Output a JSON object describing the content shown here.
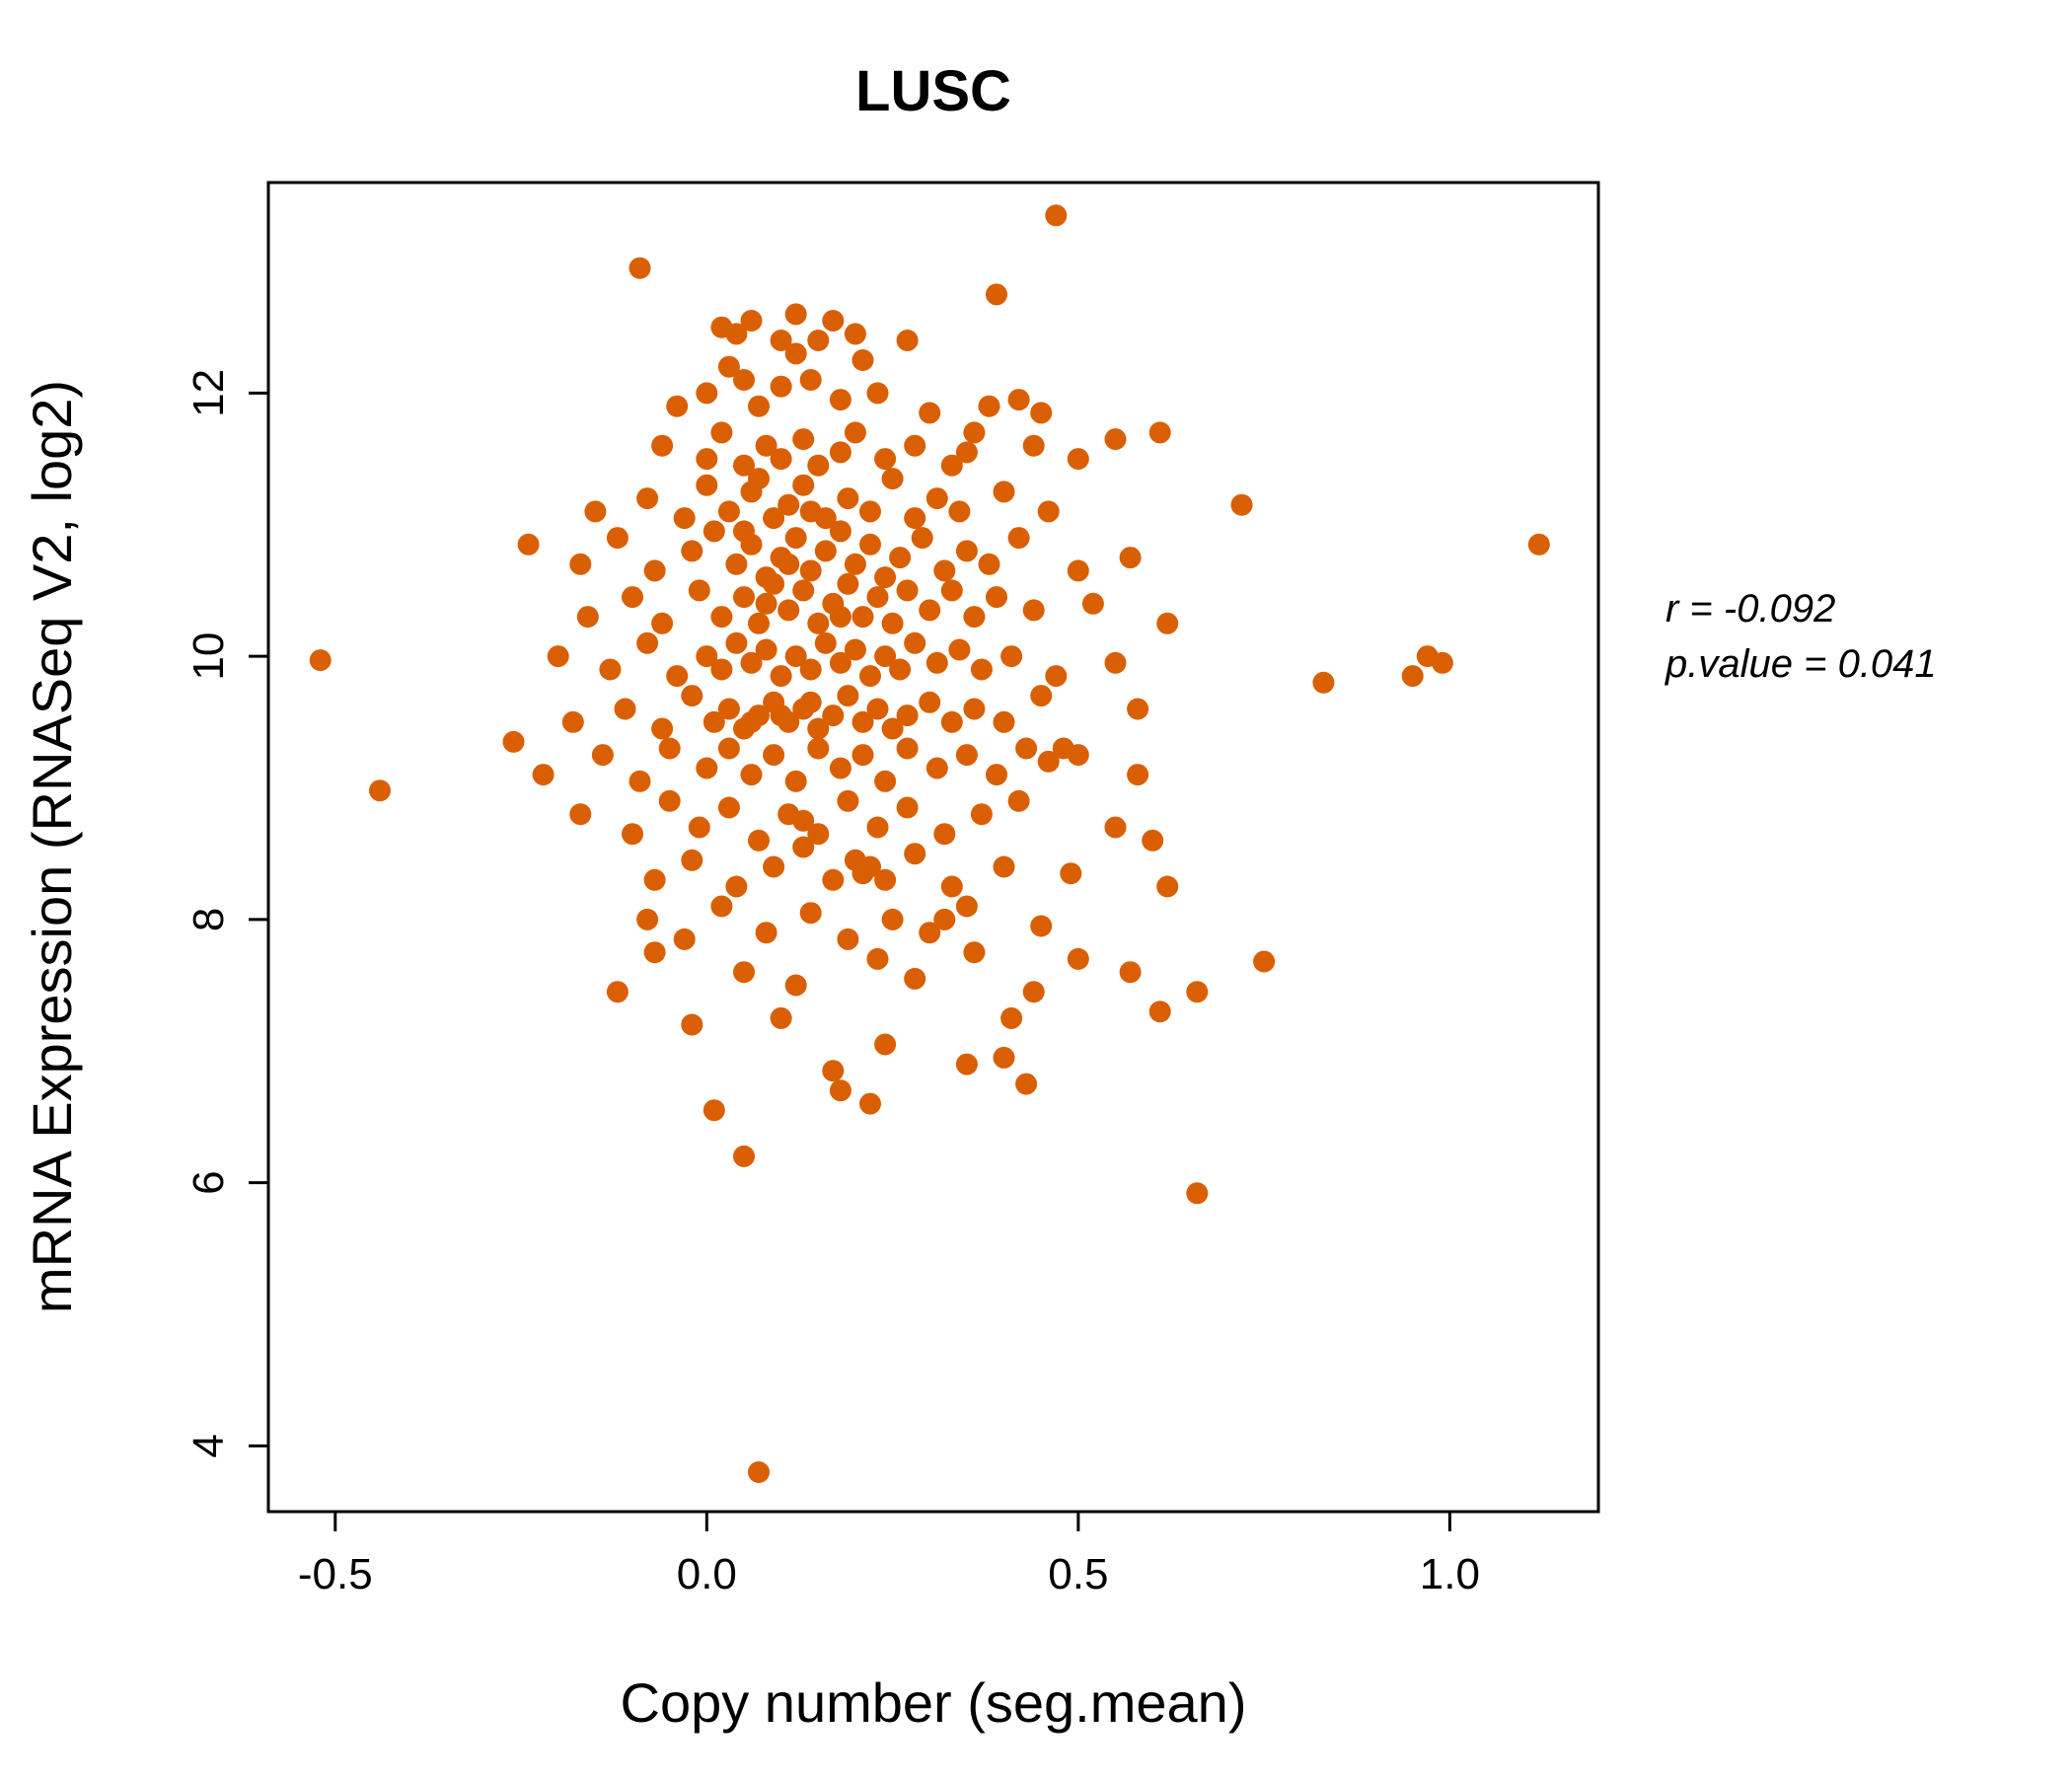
{
  "chart_data": {
    "type": "scatter",
    "title": "LUSC",
    "xlabel": "Copy number (seg.mean)",
    "ylabel": "mRNA Expression (RNASeq V2, log2)",
    "xlim": [
      -0.59,
      1.2
    ],
    "ylim": [
      3.5,
      13.6
    ],
    "x_tick_values": [
      -0.5,
      0.0,
      0.5,
      1.0
    ],
    "x_tick_labels": [
      "-0.5",
      "0.0",
      "0.5",
      "1.0"
    ],
    "y_tick_values": [
      4,
      6,
      8,
      10,
      12
    ],
    "y_tick_labels": [
      "4",
      "6",
      "8",
      "10",
      "12"
    ],
    "point_color": "#D95F02",
    "title_color": "#D95F02",
    "grid": false,
    "legend": "none",
    "annotation": [
      "r = -0.092",
      "p.value = 0.041"
    ],
    "points": [
      [
        0.02,
        12.5
      ],
      [
        0.04,
        12.45
      ],
      [
        0.06,
        12.55
      ],
      [
        0.1,
        12.4
      ],
      [
        0.15,
        12.4
      ],
      [
        0.17,
        12.55
      ],
      [
        0.2,
        12.45
      ],
      [
        0.27,
        12.4
      ],
      [
        0.12,
        12.3
      ],
      [
        0.03,
        12.2
      ],
      [
        0.21,
        12.25
      ],
      [
        0.0,
        12.0
      ],
      [
        0.05,
        12.1
      ],
      [
        0.07,
        11.9
      ],
      [
        0.1,
        12.05
      ],
      [
        0.14,
        12.1
      ],
      [
        0.18,
        11.95
      ],
      [
        0.23,
        12.0
      ],
      [
        0.3,
        11.85
      ],
      [
        0.38,
        11.9
      ],
      [
        0.42,
        11.95
      ],
      [
        0.45,
        11.85
      ],
      [
        -0.04,
        11.9
      ],
      [
        -0.06,
        11.6
      ],
      [
        0.0,
        11.5
      ],
      [
        0.02,
        11.7
      ],
      [
        0.05,
        11.45
      ],
      [
        0.08,
        11.6
      ],
      [
        0.1,
        11.5
      ],
      [
        0.13,
        11.65
      ],
      [
        0.15,
        11.45
      ],
      [
        0.18,
        11.55
      ],
      [
        0.2,
        11.7
      ],
      [
        0.24,
        11.5
      ],
      [
        0.28,
        11.6
      ],
      [
        0.33,
        11.45
      ],
      [
        0.36,
        11.7
      ],
      [
        0.44,
        11.6
      ],
      [
        0.5,
        11.5
      ],
      [
        0.55,
        11.65
      ],
      [
        0.61,
        11.7
      ],
      [
        0.35,
        11.55
      ],
      [
        -0.15,
        11.1
      ],
      [
        -0.08,
        11.2
      ],
      [
        -0.03,
        11.05
      ],
      [
        0.0,
        11.3
      ],
      [
        0.03,
        11.1
      ],
      [
        0.06,
        11.25
      ],
      [
        0.09,
        11.05
      ],
      [
        0.11,
        11.15
      ],
      [
        0.13,
        11.3
      ],
      [
        0.16,
        11.05
      ],
      [
        0.19,
        11.2
      ],
      [
        0.22,
        11.1
      ],
      [
        0.25,
        11.35
      ],
      [
        0.28,
        11.05
      ],
      [
        0.31,
        11.2
      ],
      [
        0.34,
        11.1
      ],
      [
        0.4,
        11.25
      ],
      [
        0.46,
        11.1
      ],
      [
        0.72,
        11.15
      ],
      [
        0.14,
        11.1
      ],
      [
        0.07,
        11.35
      ],
      [
        -0.24,
        10.85
      ],
      [
        -0.17,
        10.7
      ],
      [
        -0.12,
        10.9
      ],
      [
        -0.07,
        10.65
      ],
      [
        -0.02,
        10.8
      ],
      [
        0.01,
        10.95
      ],
      [
        0.04,
        10.7
      ],
      [
        0.06,
        10.85
      ],
      [
        0.08,
        10.6
      ],
      [
        0.1,
        10.75
      ],
      [
        0.12,
        10.9
      ],
      [
        0.14,
        10.65
      ],
      [
        0.16,
        10.8
      ],
      [
        0.18,
        10.95
      ],
      [
        0.2,
        10.7
      ],
      [
        0.22,
        10.85
      ],
      [
        0.24,
        10.6
      ],
      [
        0.26,
        10.75
      ],
      [
        0.29,
        10.9
      ],
      [
        0.32,
        10.65
      ],
      [
        0.35,
        10.8
      ],
      [
        0.38,
        10.7
      ],
      [
        0.42,
        10.9
      ],
      [
        0.5,
        10.65
      ],
      [
        0.57,
        10.75
      ],
      [
        1.12,
        10.85
      ],
      [
        0.11,
        10.7
      ],
      [
        0.05,
        10.95
      ],
      [
        -0.16,
        10.3
      ],
      [
        -0.1,
        10.45
      ],
      [
        -0.06,
        10.25
      ],
      [
        -0.01,
        10.5
      ],
      [
        0.02,
        10.3
      ],
      [
        0.05,
        10.45
      ],
      [
        0.07,
        10.25
      ],
      [
        0.09,
        10.55
      ],
      [
        0.11,
        10.35
      ],
      [
        0.13,
        10.5
      ],
      [
        0.15,
        10.25
      ],
      [
        0.17,
        10.4
      ],
      [
        0.19,
        10.55
      ],
      [
        0.21,
        10.3
      ],
      [
        0.23,
        10.45
      ],
      [
        0.25,
        10.25
      ],
      [
        0.27,
        10.5
      ],
      [
        0.3,
        10.35
      ],
      [
        0.33,
        10.5
      ],
      [
        0.36,
        10.3
      ],
      [
        0.39,
        10.45
      ],
      [
        0.44,
        10.35
      ],
      [
        0.52,
        10.4
      ],
      [
        0.62,
        10.25
      ],
      [
        0.18,
        10.3
      ],
      [
        0.08,
        10.4
      ],
      [
        -0.52,
        9.97
      ],
      [
        -0.2,
        10.0
      ],
      [
        -0.13,
        9.9
      ],
      [
        -0.08,
        10.1
      ],
      [
        -0.04,
        9.85
      ],
      [
        0.0,
        10.0
      ],
      [
        0.02,
        9.9
      ],
      [
        0.04,
        10.1
      ],
      [
        0.06,
        9.95
      ],
      [
        0.08,
        10.05
      ],
      [
        0.1,
        9.85
      ],
      [
        0.12,
        10.0
      ],
      [
        0.14,
        9.9
      ],
      [
        0.16,
        10.1
      ],
      [
        0.18,
        9.95
      ],
      [
        0.2,
        10.05
      ],
      [
        0.22,
        9.85
      ],
      [
        0.24,
        10.0
      ],
      [
        0.26,
        9.9
      ],
      [
        0.28,
        10.1
      ],
      [
        0.31,
        9.95
      ],
      [
        0.34,
        10.05
      ],
      [
        0.37,
        9.9
      ],
      [
        0.41,
        10.0
      ],
      [
        0.47,
        9.85
      ],
      [
        0.55,
        9.95
      ],
      [
        0.83,
        9.8
      ],
      [
        0.95,
        9.85
      ],
      [
        0.97,
        10.0
      ],
      [
        0.99,
        9.95
      ],
      [
        -0.18,
        9.5
      ],
      [
        -0.11,
        9.6
      ],
      [
        -0.06,
        9.45
      ],
      [
        -0.02,
        9.7
      ],
      [
        0.01,
        9.5
      ],
      [
        0.03,
        9.6
      ],
      [
        0.05,
        9.45
      ],
      [
        0.07,
        9.55
      ],
      [
        0.09,
        9.65
      ],
      [
        0.11,
        9.5
      ],
      [
        0.13,
        9.6
      ],
      [
        0.15,
        9.45
      ],
      [
        0.17,
        9.55
      ],
      [
        0.19,
        9.7
      ],
      [
        0.21,
        9.5
      ],
      [
        0.23,
        9.6
      ],
      [
        0.25,
        9.45
      ],
      [
        0.27,
        9.55
      ],
      [
        0.3,
        9.65
      ],
      [
        0.33,
        9.5
      ],
      [
        0.36,
        9.6
      ],
      [
        0.4,
        9.5
      ],
      [
        0.45,
        9.7
      ],
      [
        0.58,
        9.6
      ],
      [
        0.1,
        9.55
      ],
      [
        0.06,
        9.5
      ],
      [
        0.14,
        9.65
      ],
      [
        -0.26,
        9.35
      ],
      [
        -0.22,
        9.1
      ],
      [
        -0.14,
        9.25
      ],
      [
        -0.09,
        9.05
      ],
      [
        -0.05,
        9.3
      ],
      [
        0.0,
        9.15
      ],
      [
        0.03,
        9.3
      ],
      [
        0.06,
        9.1
      ],
      [
        0.09,
        9.25
      ],
      [
        0.12,
        9.05
      ],
      [
        0.15,
        9.3
      ],
      [
        0.18,
        9.15
      ],
      [
        0.21,
        9.25
      ],
      [
        0.24,
        9.05
      ],
      [
        0.27,
        9.3
      ],
      [
        0.31,
        9.15
      ],
      [
        0.35,
        9.25
      ],
      [
        0.39,
        9.1
      ],
      [
        0.43,
        9.3
      ],
      [
        0.46,
        9.2
      ],
      [
        0.48,
        9.3
      ],
      [
        0.5,
        9.25
      ],
      [
        0.58,
        9.1
      ],
      [
        -0.44,
        8.98
      ],
      [
        -0.17,
        8.8
      ],
      [
        -0.1,
        8.65
      ],
      [
        -0.05,
        8.9
      ],
      [
        -0.01,
        8.7
      ],
      [
        0.03,
        8.85
      ],
      [
        0.07,
        8.6
      ],
      [
        0.11,
        8.8
      ],
      [
        0.15,
        8.65
      ],
      [
        0.19,
        8.9
      ],
      [
        0.23,
        8.7
      ],
      [
        0.27,
        8.85
      ],
      [
        0.32,
        8.65
      ],
      [
        0.37,
        8.8
      ],
      [
        0.42,
        8.9
      ],
      [
        0.55,
        8.7
      ],
      [
        0.6,
        8.6
      ],
      [
        0.13,
        8.75
      ],
      [
        -0.07,
        8.3
      ],
      [
        -0.02,
        8.45
      ],
      [
        0.04,
        8.25
      ],
      [
        0.09,
        8.4
      ],
      [
        0.13,
        8.55
      ],
      [
        0.17,
        8.3
      ],
      [
        0.2,
        8.45
      ],
      [
        0.21,
        8.35
      ],
      [
        0.22,
        8.4
      ],
      [
        0.24,
        8.3
      ],
      [
        0.28,
        8.5
      ],
      [
        0.33,
        8.25
      ],
      [
        0.4,
        8.4
      ],
      [
        0.49,
        8.35
      ],
      [
        0.62,
        8.25
      ],
      [
        -0.08,
        8.0
      ],
      [
        -0.03,
        7.85
      ],
      [
        0.02,
        8.1
      ],
      [
        0.08,
        7.9
      ],
      [
        0.14,
        8.05
      ],
      [
        0.19,
        7.85
      ],
      [
        0.25,
        8.0
      ],
      [
        0.3,
        7.9
      ],
      [
        0.35,
        8.1
      ],
      [
        0.45,
        7.95
      ],
      [
        0.32,
        8.0
      ],
      [
        -0.12,
        7.45
      ],
      [
        -0.07,
        7.75
      ],
      [
        0.05,
        7.6
      ],
      [
        0.12,
        7.5
      ],
      [
        0.23,
        7.7
      ],
      [
        0.28,
        7.55
      ],
      [
        0.36,
        7.75
      ],
      [
        0.44,
        7.45
      ],
      [
        0.5,
        7.7
      ],
      [
        0.57,
        7.6
      ],
      [
        0.66,
        7.45
      ],
      [
        0.75,
        7.68
      ],
      [
        -0.02,
        7.2
      ],
      [
        0.1,
        7.25
      ],
      [
        0.24,
        7.05
      ],
      [
        0.41,
        7.25
      ],
      [
        0.61,
        7.3
      ],
      [
        0.17,
        6.85
      ],
      [
        0.22,
        6.6
      ],
      [
        0.35,
        6.9
      ],
      [
        0.4,
        6.95
      ],
      [
        0.43,
        6.75
      ],
      [
        0.18,
        6.7
      ],
      [
        0.01,
        6.55
      ],
      [
        0.05,
        6.2
      ],
      [
        0.66,
        5.92
      ],
      [
        0.07,
        3.8
      ],
      [
        -0.09,
        12.95
      ],
      [
        0.47,
        13.35
      ],
      [
        0.39,
        12.75
      ],
      [
        0.12,
        12.6
      ]
    ]
  }
}
